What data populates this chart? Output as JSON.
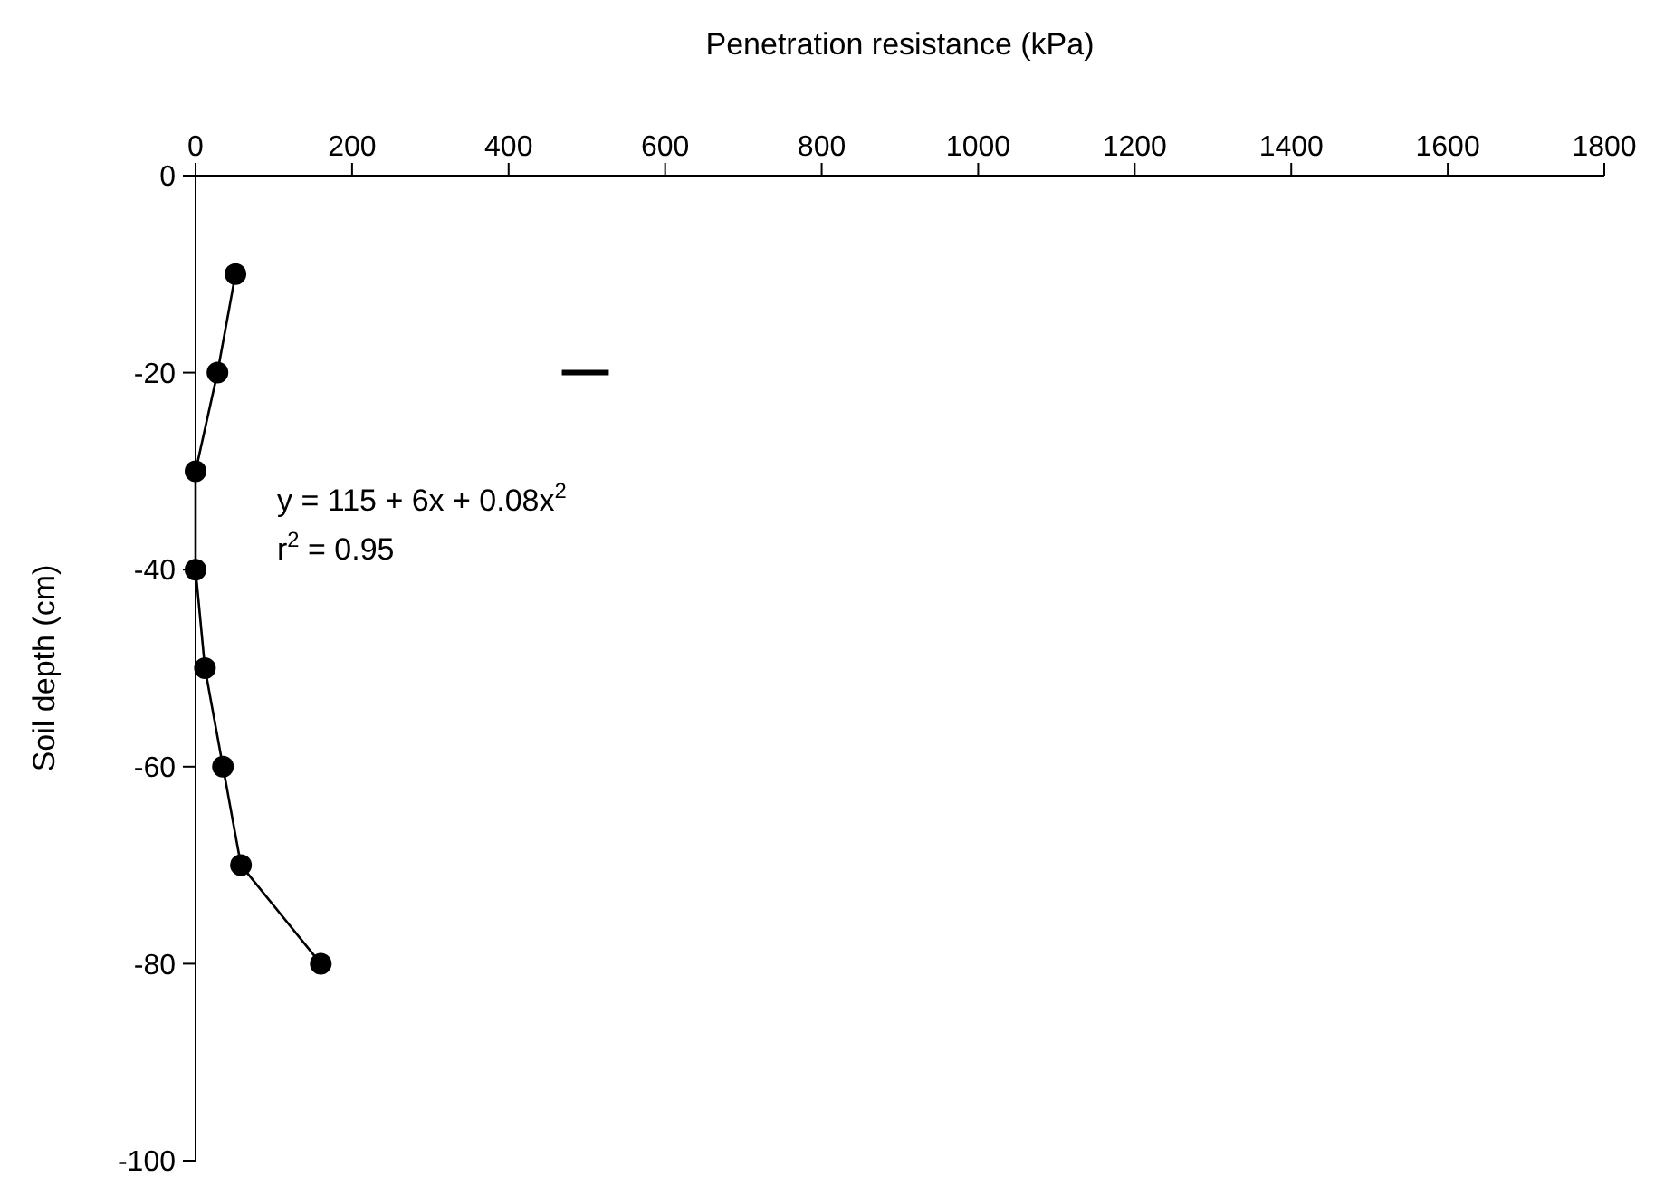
{
  "chart_data": {
    "type": "line",
    "xlabel": "Penetration resistance (kPa)",
    "ylabel": "Soil depth (cm)",
    "xlim": [
      0,
      1800
    ],
    "xticks": [
      0,
      200,
      400,
      600,
      800,
      1000,
      1200,
      1400,
      1600,
      1800
    ],
    "ylim": [
      -100,
      0
    ],
    "yticks": [
      -100,
      -80,
      -60,
      -40,
      -20,
      0
    ],
    "series": [
      {
        "color": "#000000",
        "x": [
          51,
          28,
          0,
          0,
          12,
          35,
          58,
          160
        ],
        "values": [
          -10,
          -20,
          -30,
          -40,
          -50,
          -60,
          -70,
          -80
        ]
      },
      {
        "color": "#000000",
        "x": [
          468,
          528
        ],
        "values": [
          -20,
          -20
        ],
        "marker": "none"
      }
    ],
    "annotations": [
      "y = 115 + 6x + 0.08x$^{2}$",
      "r$^{2}$ = 0.95"
    ],
    "marker": "circle",
    "line_style": "solid",
    "grid": false
  }
}
